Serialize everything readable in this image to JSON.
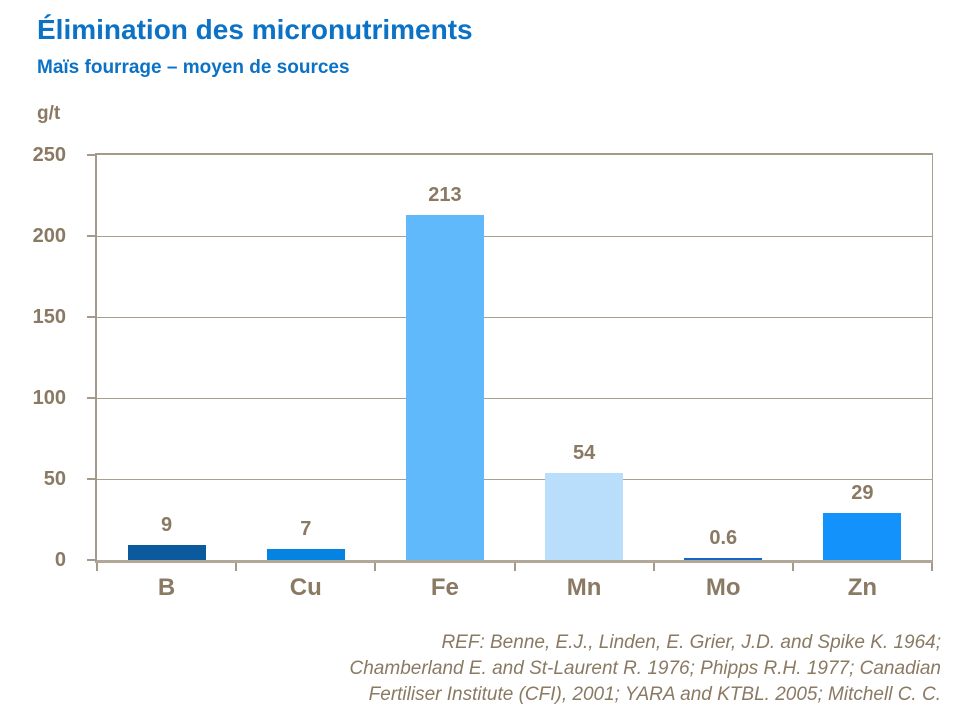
{
  "header": {
    "title": "Élimination des micronutriments",
    "subtitle": "Maïs fourrage – moyen de sources"
  },
  "chart_data": {
    "type": "bar",
    "title": "Élimination des micronutriments",
    "subtitle": "Maïs fourrage – moyen de sources",
    "ylabel": "g/t",
    "xlabel": "",
    "categories": [
      "B",
      "Cu",
      "Fe",
      "Mn",
      "Mo",
      "Zn"
    ],
    "values": [
      9,
      7,
      213,
      54,
      0.6,
      29
    ],
    "value_labels": [
      "9",
      "7",
      "213",
      "54",
      "0.6",
      "29"
    ],
    "bar_colors": [
      "#0c5a9e",
      "#0583e3",
      "#5fb9fa",
      "#b8defb",
      "#1266cc",
      "#1292fa"
    ],
    "ylim": [
      0,
      250
    ],
    "yticks": [
      250,
      200,
      150,
      100,
      50,
      0
    ],
    "grid": true,
    "legend": "none"
  },
  "footer": {
    "reference_lines": [
      "REF: Benne, E.J., Linden, E. Grier, J.D. and Spike K. 1964;",
      "Chamberland E. and St-Laurent R. 1976; Phipps R.H. 1977; Canadian",
      "Fertiliser Institute (CFI), 2001; YARA and KTBL. 2005; Mitchell C. C."
    ]
  },
  "colors": {
    "title_blue": "#0b72c6",
    "label_brown": "#8a7963",
    "gridline": "#a89f91",
    "axis": "#a49a8b",
    "axis_light": "#b1a89a"
  }
}
